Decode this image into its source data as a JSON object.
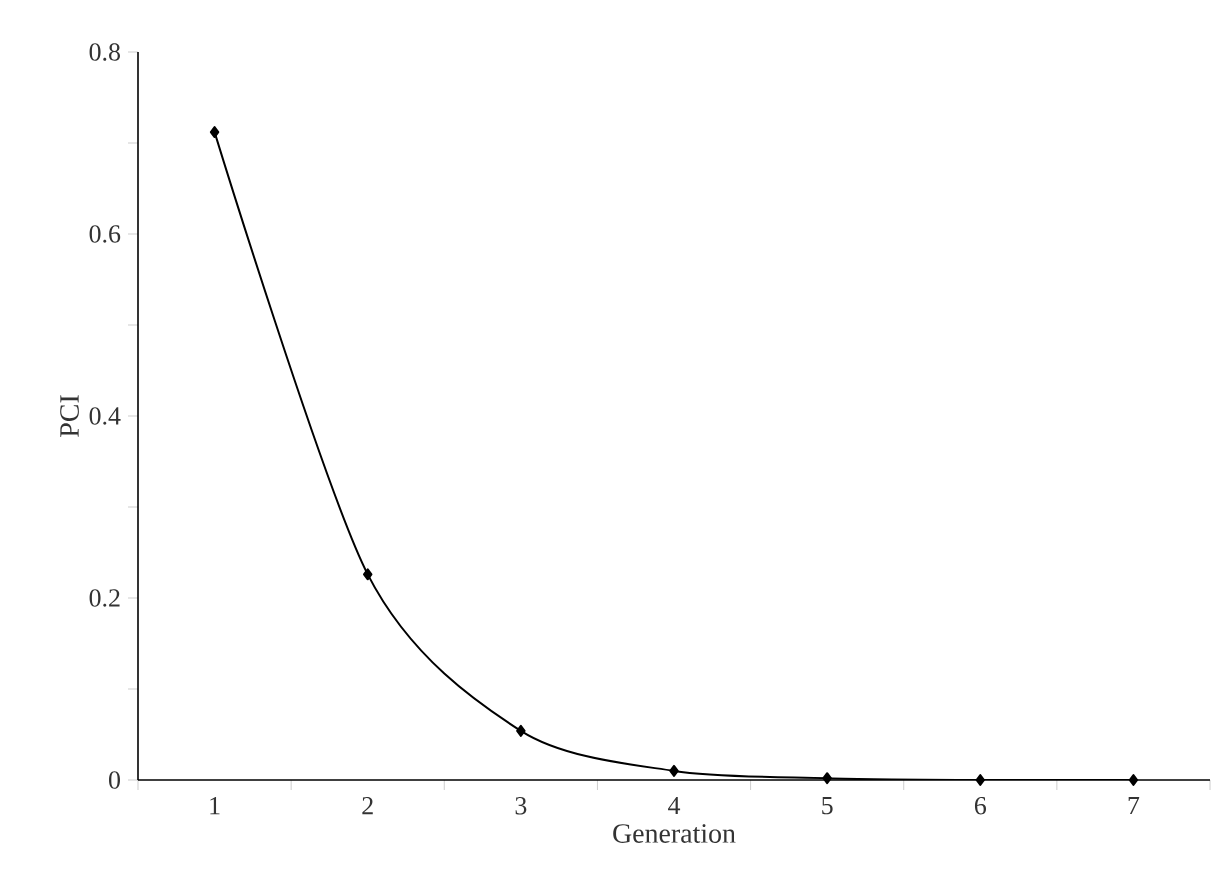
{
  "chart_data": {
    "type": "line",
    "xlabel": "Generation",
    "ylabel": "PCI",
    "categories": [
      "1",
      "2",
      "3",
      "4",
      "5",
      "6",
      "7"
    ],
    "values": [
      0.712,
      0.226,
      0.054,
      0.01,
      0.002,
      0,
      0
    ],
    "color": "#000000",
    "marker": "diamond",
    "line_style": "solid",
    "ylim": [
      0,
      0.8
    ],
    "yticks": [
      0,
      {
        "value": 0.1,
        "label": null
      },
      0.2,
      {
        "value": 0.3,
        "label": null
      },
      0.4,
      {
        "value": 0.5,
        "label": null
      },
      0.6,
      {
        "value": 0.7,
        "label": null
      },
      0.8
    ]
  }
}
